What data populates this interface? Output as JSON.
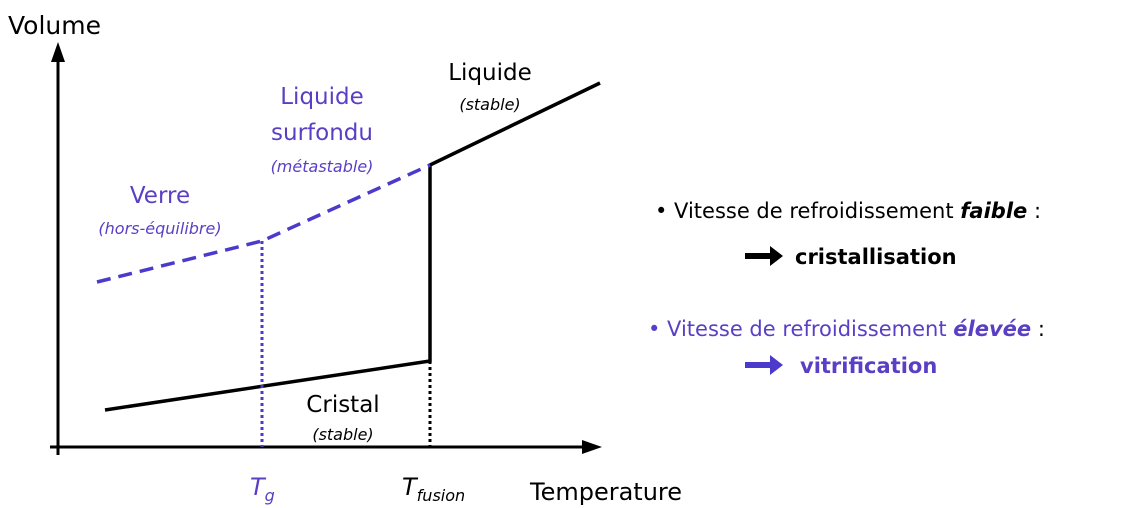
{
  "axes": {
    "y_label": "Volume",
    "x_label": "Temperature",
    "tg": {
      "main": "T",
      "sub": "g"
    },
    "tfusion": {
      "main": "T",
      "sub": "fusion"
    }
  },
  "regions": {
    "liquide": {
      "name": "Liquide",
      "state": "(stable)"
    },
    "surfondu": {
      "name": [
        "Liquide",
        "surfondu"
      ],
      "state": "(métastable)"
    },
    "verre": {
      "name": "Verre",
      "state": "(hors-équilibre)"
    },
    "cristal": {
      "name": "Cristal",
      "state": "(stable)"
    }
  },
  "notes": [
    {
      "prefix": "• Vitesse de refroidissement",
      "emphasis": "faible",
      "suffix": ":",
      "result": "cristallisation"
    },
    {
      "prefix": "• Vitesse de refroidissement",
      "emphasis": "élevée",
      "suffix": ":",
      "result": "vitrification"
    }
  ]
}
